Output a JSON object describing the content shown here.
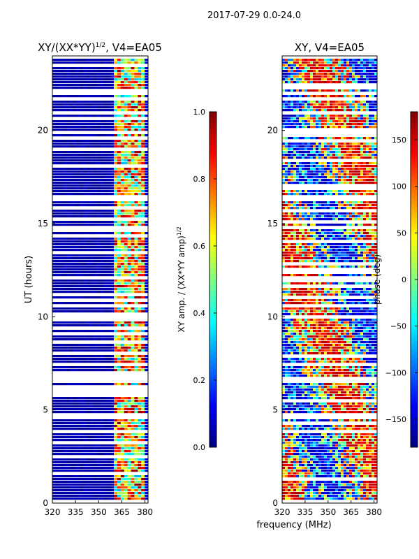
{
  "figure": {
    "suptitle": "2017-07-29 0.0-24.0",
    "shared_xlabel": "frequency (MHz)"
  },
  "colors": {
    "jet": [
      "#00007f",
      "#0000ff",
      "#007fff",
      "#00ffff",
      "#7fff7f",
      "#ffff00",
      "#ff7f00",
      "#ff0000",
      "#7f0000"
    ]
  },
  "chart_data": [
    {
      "type": "heatmap",
      "title_prefix": "XY/(XX*YY)",
      "title_sup": "1/2",
      "title_suffix": ", V4=EA05",
      "xlabel": "",
      "ylabel": "UT (hours)",
      "x_ticks": [
        "320",
        "335",
        "350",
        "365",
        "380"
      ],
      "x_tick_values": [
        320,
        335,
        350,
        365,
        380
      ],
      "xlim": [
        320,
        382
      ],
      "y_ticks": [
        "0",
        "5",
        "10",
        "15",
        "20"
      ],
      "y_tick_values": [
        0,
        5,
        10,
        15,
        20
      ],
      "ylim": [
        0,
        24
      ],
      "colorbar": {
        "label_prefix": "XY amp. / (XX*YY amp)",
        "label_sup": "1/2",
        "ticks": [
          "0.0",
          "0.2",
          "0.4",
          "0.6",
          "0.8",
          "1.0"
        ],
        "tick_values": [
          0.0,
          0.2,
          0.4,
          0.6,
          0.8,
          1.0
        ],
        "range": [
          0,
          1
        ]
      },
      "description": "Normalized XY amplitude vs frequency and UT; mostly near 0 below ~360 MHz, mixed 0.3-1.0 between 360-380 MHz"
    },
    {
      "type": "heatmap",
      "title": "XY, V4=EA05",
      "xlabel": "frequency (MHz)",
      "ylabel": "",
      "x_ticks": [
        "320",
        "335",
        "350",
        "365",
        "380"
      ],
      "x_tick_values": [
        320,
        335,
        350,
        365,
        380
      ],
      "xlim": [
        320,
        382
      ],
      "y_ticks": [
        "0",
        "5",
        "10",
        "15",
        "20"
      ],
      "y_tick_values": [
        0,
        5,
        10,
        15,
        20
      ],
      "ylim": [
        0,
        24
      ],
      "colorbar": {
        "label": "phase (deg)",
        "ticks": [
          "−150",
          "−100",
          "−50",
          "0",
          "50",
          "100",
          "150"
        ],
        "tick_values": [
          -150,
          -100,
          -50,
          0,
          50,
          100,
          150
        ],
        "range": [
          -180,
          180
        ]
      },
      "description": "XY phase vs frequency and UT; values span full -180 to 180 deg range"
    }
  ]
}
